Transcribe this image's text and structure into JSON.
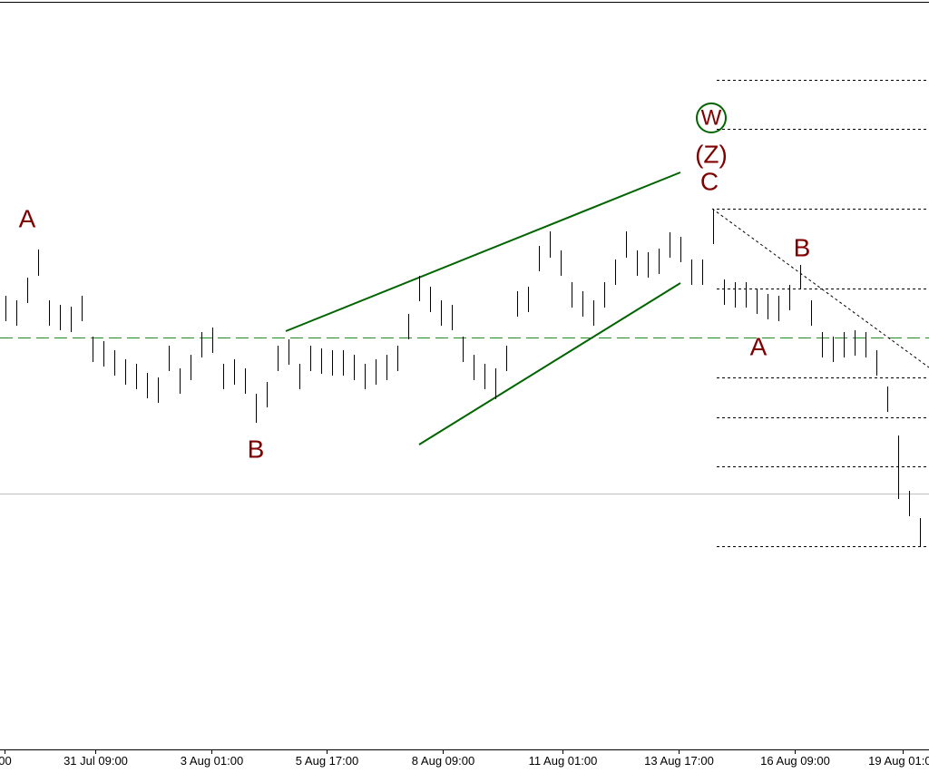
{
  "chart_data": {
    "type": "ohlc",
    "xlim": [
      -0.5,
      84.83
    ],
    "ylim": [
      0,
      826
    ],
    "xticks": [
      {
        "value": -0.08,
        "label": "00"
      },
      {
        "value": 8.25,
        "label": "31 Jul 09:00"
      },
      {
        "value": 18.9,
        "label": "3 Aug 01:00"
      },
      {
        "value": 29.5,
        "label": "5 Aug 17:00"
      },
      {
        "value": 40.2,
        "label": "8 Aug 09:00"
      },
      {
        "value": 51.2,
        "label": "11 Aug 01:00"
      },
      {
        "value": 61.8,
        "label": "13 Aug 17:00"
      },
      {
        "value": 72.5,
        "label": "16 Aug 09:00"
      },
      {
        "value": 82.4,
        "label": "19 Aug 01:00"
      }
    ],
    "color": "#000000",
    "high": [
      500,
      495,
      520,
      551,
      495,
      490,
      488,
      500,
      455,
      450,
      440,
      430,
      425,
      415,
      410,
      445,
      420,
      435,
      460,
      465,
      425,
      430,
      420,
      392,
      405,
      445,
      452,
      425,
      445,
      442,
      440,
      440,
      435,
      425,
      430,
      435,
      445,
      480,
      522,
      510,
      495,
      490,
      455,
      435,
      425,
      420,
      445,
      505,
      510,
      555,
      571,
      550,
      515,
      505,
      495,
      515,
      540,
      571,
      550,
      548,
      552,
      570,
      565,
      540,
      540,
      596,
      518,
      515,
      515,
      508,
      502,
      500,
      512,
      534,
      495,
      460,
      455,
      460,
      462,
      460,
      440,
      400,
      346,
      285,
      255
    ],
    "low": [
      472,
      467,
      492,
      522,
      467,
      462,
      460,
      472,
      427,
      422,
      412,
      402,
      397,
      387,
      382,
      417,
      392,
      407,
      432,
      437,
      397,
      402,
      392,
      360,
      377,
      417,
      424,
      397,
      417,
      414,
      412,
      412,
      407,
      397,
      402,
      407,
      417,
      452,
      494,
      482,
      467,
      462,
      427,
      407,
      397,
      386,
      417,
      477,
      482,
      527,
      542,
      522,
      487,
      477,
      467,
      487,
      512,
      542,
      522,
      520,
      524,
      542,
      537,
      512,
      512,
      557,
      490,
      487,
      487,
      480,
      474,
      472,
      484,
      507,
      467,
      432,
      427,
      432,
      434,
      432,
      412,
      372,
      276,
      257,
      224
    ],
    "annotations": [
      {
        "text": "A",
        "color": "#800000"
      },
      {
        "text": "B",
        "color": "#800000"
      },
      {
        "text": "W",
        "color": "#006400"
      },
      {
        "text": "(Z)",
        "color": "#191970"
      },
      {
        "text": "C",
        "color": "#800000"
      },
      {
        "text": "B",
        "color": "#800000"
      },
      {
        "text": "A",
        "color": "#800000"
      }
    ]
  }
}
